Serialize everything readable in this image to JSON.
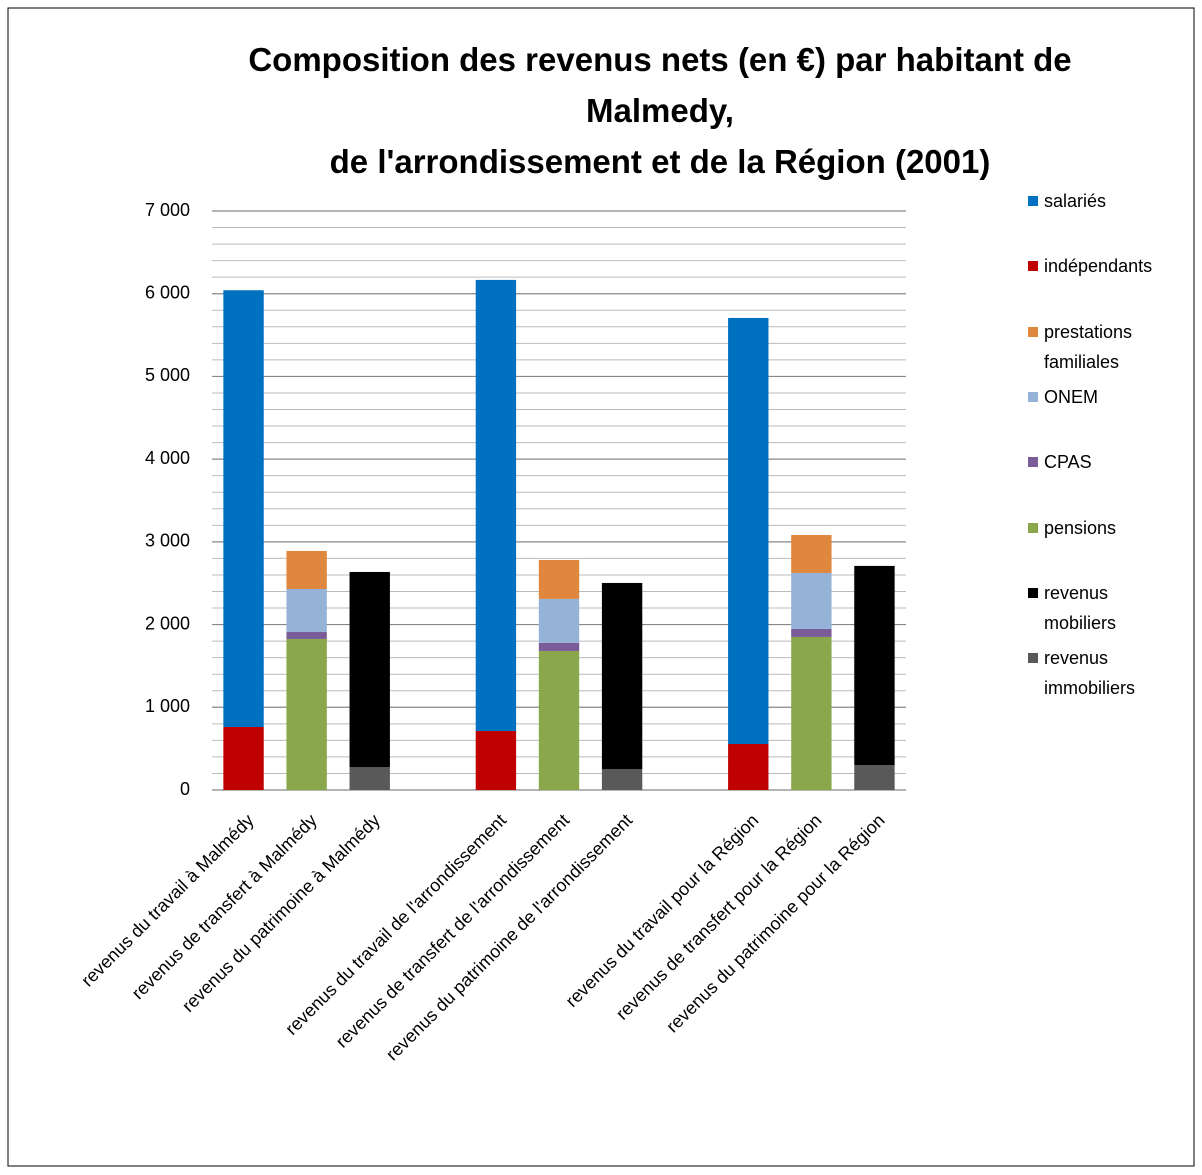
{
  "chart_data": {
    "type": "stacked_bar",
    "title": "Composition des revenus nets (en €) par habitant de Malmedy,\nde l'arrondissement et de la Région (2001)",
    "categories": [
      "revenus du travail à Malmédy",
      "revenus de transfert à Malmédy",
      "revenus du patrimoine à Malmédy",
      null,
      "revenus du travail de l'arrondissement",
      "revenus de transfert de l'arrondissement",
      "revenus du patrimoine de l'arrondissement",
      null,
      "revenus du travail pour la Région",
      "revenus de transfert pour la Région",
      "revenus du patrimoine pour la Région"
    ],
    "series": [
      {
        "name": "salariés",
        "color": "#0070c0",
        "values": [
          5280,
          null,
          null,
          null,
          5454,
          null,
          null,
          null,
          5151,
          null,
          null
        ]
      },
      {
        "name": "indépendants",
        "color": "#c00000",
        "values": [
          762,
          null,
          null,
          null,
          713,
          null,
          null,
          null,
          556,
          null,
          null
        ]
      },
      {
        "name": "prestations familiales",
        "color": "#e0873f",
        "values": [
          null,
          460,
          null,
          null,
          null,
          471,
          null,
          null,
          null,
          459,
          null
        ]
      },
      {
        "name": "ONEM",
        "color": "#95b3d7",
        "values": [
          null,
          520,
          null,
          null,
          null,
          532,
          null,
          null,
          null,
          677,
          null
        ]
      },
      {
        "name": "CPAS",
        "color": "#7a5c99",
        "values": [
          null,
          84,
          null,
          null,
          null,
          97,
          null,
          null,
          null,
          97,
          null
        ]
      },
      {
        "name": "pensions",
        "color": "#8aa84b",
        "values": [
          null,
          1826,
          null,
          null,
          null,
          1681,
          null,
          null,
          null,
          1850,
          null
        ]
      },
      {
        "name": "revenus mobiliers",
        "color": "#000000",
        "values": [
          null,
          null,
          2358,
          null,
          null,
          null,
          2249,
          null,
          null,
          null,
          2407
        ]
      },
      {
        "name": "revenus immobiliers",
        "color": "#595959",
        "values": [
          null,
          null,
          278,
          null,
          null,
          null,
          254,
          null,
          null,
          null,
          302
        ]
      }
    ],
    "ylim": [
      0,
      7000
    ],
    "yticks": [
      {
        "value": 0,
        "label": "0"
      },
      {
        "value": 1000,
        "label": "1 000"
      },
      {
        "value": 2000,
        "label": "2 000"
      },
      {
        "value": 3000,
        "label": "3 000"
      },
      {
        "value": 4000,
        "label": "4 000"
      },
      {
        "value": 5000,
        "label": "5 000"
      },
      {
        "value": 6000,
        "label": "6 000"
      },
      {
        "value": 7000,
        "label": "7 000"
      }
    ],
    "yminor": [
      200,
      400,
      600,
      800,
      1200,
      1400,
      1600,
      1800,
      2200,
      2400,
      2600,
      2800,
      3200,
      3400,
      3600,
      3800,
      4200,
      4400,
      4600,
      4800,
      5200,
      5400,
      5600,
      5800,
      6200,
      6400,
      6600,
      6800
    ],
    "grid": true,
    "legend": "right"
  }
}
